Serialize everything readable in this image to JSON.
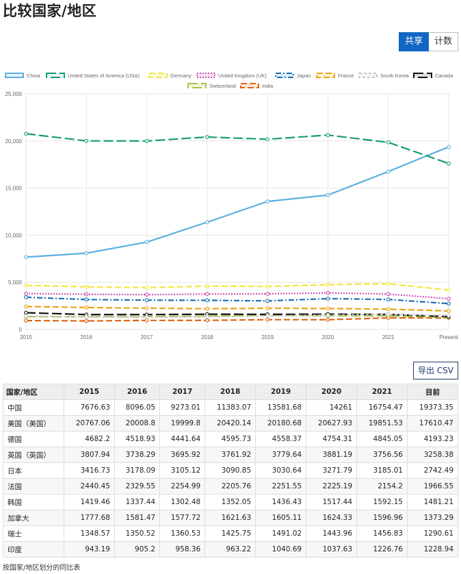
{
  "page": {
    "title": "比较国家/地区",
    "share_label": "共享",
    "count_label": "计数",
    "export_label": "导出 CSV",
    "caption": "按国家/地区划分的同比表"
  },
  "chart_data": {
    "type": "line",
    "x": [
      "2015",
      "2016",
      "2017",
      "2018",
      "2019",
      "2020",
      "2021",
      "Present"
    ],
    "ylim": [
      0,
      25000
    ],
    "yticks": [
      "0",
      "5,000",
      "10,000",
      "15,000",
      "20,000",
      "25,000"
    ],
    "yticks_values": [
      0,
      5000,
      10000,
      15000,
      20000,
      25000
    ],
    "grid": true,
    "legend_position": "top",
    "series": [
      {
        "name": "China",
        "color": "#5aafe0",
        "dash": "solid",
        "marker": "#e8f4fb",
        "values": [
          7676.63,
          8096.05,
          9273.01,
          11383.07,
          13581.68,
          14261,
          16754.47,
          19373.35
        ]
      },
      {
        "name": "United States of America (USA)",
        "color": "#139c7a",
        "dash": "long",
        "marker": "#e6f5f1",
        "values": [
          20767.06,
          20008.8,
          19999.8,
          20420.14,
          20180.68,
          20627.93,
          19851.53,
          17610.47
        ]
      },
      {
        "name": "Germany",
        "color": "#f3e640",
        "dash": "medium",
        "marker": "#fdf9d8",
        "values": [
          4682.2,
          4518.93,
          4441.64,
          4595.73,
          4558.37,
          4754.31,
          4845.05,
          4193.23
        ]
      },
      {
        "name": "United Kingdom (UK)",
        "color": "#d14fb7",
        "dash": "dotted",
        "marker": "#f7e2f2",
        "values": [
          3807.94,
          3738.29,
          3695.92,
          3761.92,
          3779.64,
          3881.19,
          3756.56,
          3258.38
        ]
      },
      {
        "name": "Japan",
        "color": "#1a6fb3",
        "dash": "dashdot",
        "marker": "#e0edf7",
        "values": [
          3416.73,
          3178.09,
          3105.12,
          3090.85,
          3030.64,
          3271.79,
          3185.01,
          2742.49
        ]
      },
      {
        "name": "France",
        "color": "#e8a317",
        "dash": "medium",
        "marker": "#fcf0d5",
        "values": [
          2440.45,
          2329.55,
          2254.99,
          2205.76,
          2251.55,
          2225.19,
          2154.2,
          1966.55
        ]
      },
      {
        "name": "South Korea",
        "color": "#c8c8c8",
        "dash": "short",
        "marker": "#f5f5f5",
        "values": [
          1419.46,
          1337.44,
          1302.48,
          1352.05,
          1436.43,
          1517.44,
          1592.15,
          1481.21
        ]
      },
      {
        "name": "Canada",
        "color": "#111111",
        "dash": "long",
        "marker": "#dddddd",
        "values": [
          1777.68,
          1581.47,
          1577.72,
          1621.63,
          1605.11,
          1624.33,
          1596.96,
          1373.29
        ]
      },
      {
        "name": "Switzerland",
        "color": "#a8c24a",
        "dash": "long",
        "marker": "#f0f5de",
        "values": [
          1348.57,
          1350.52,
          1360.53,
          1425.75,
          1491.02,
          1443.96,
          1456.83,
          1290.61
        ]
      },
      {
        "name": "India",
        "color": "#e06414",
        "dash": "medium",
        "marker": "#fbe4d6",
        "values": [
          943.19,
          905.2,
          958.36,
          963.22,
          1040.69,
          1037.63,
          1226.76,
          1228.94
        ]
      }
    ]
  },
  "table": {
    "headers": [
      "国家/地区",
      "2015",
      "2016",
      "2017",
      "2018",
      "2019",
      "2020",
      "2021",
      "目前"
    ],
    "rows": [
      [
        "中国",
        "7676.63",
        "8096.05",
        "9273.01",
        "11383.07",
        "13581.68",
        "14261",
        "16754.47",
        "19373.35"
      ],
      [
        "美国（美国）",
        "20767.06",
        "20008.8",
        "19999.8",
        "20420.14",
        "20180.68",
        "20627.93",
        "19851.53",
        "17610.47"
      ],
      [
        "德国",
        "4682.2",
        "4518.93",
        "4441.64",
        "4595.73",
        "4558.37",
        "4754.31",
        "4845.05",
        "4193.23"
      ],
      [
        "英国（英国）",
        "3807.94",
        "3738.29",
        "3695.92",
        "3761.92",
        "3779.64",
        "3881.19",
        "3756.56",
        "3258.38"
      ],
      [
        "日本",
        "3416.73",
        "3178.09",
        "3105.12",
        "3090.85",
        "3030.64",
        "3271.79",
        "3185.01",
        "2742.49"
      ],
      [
        "法国",
        "2440.45",
        "2329.55",
        "2254.99",
        "2205.76",
        "2251.55",
        "2225.19",
        "2154.2",
        "1966.55"
      ],
      [
        "韩国",
        "1419.46",
        "1337.44",
        "1302.48",
        "1352.05",
        "1436.43",
        "1517.44",
        "1592.15",
        "1481.21"
      ],
      [
        "加拿大",
        "1777.68",
        "1581.47",
        "1577.72",
        "1621.63",
        "1605.11",
        "1624.33",
        "1596.96",
        "1373.29"
      ],
      [
        "瑞士",
        "1348.57",
        "1350.52",
        "1360.53",
        "1425.75",
        "1491.02",
        "1443.96",
        "1456.83",
        "1290.61"
      ],
      [
        "印度",
        "943.19",
        "905.2",
        "958.36",
        "963.22",
        "1040.69",
        "1037.63",
        "1226.76",
        "1228.94"
      ]
    ]
  }
}
